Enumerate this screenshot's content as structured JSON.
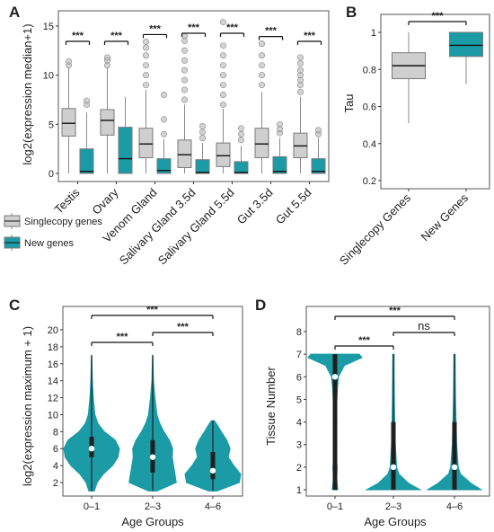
{
  "colors": {
    "single": "#cfcfcf",
    "new": "#1a9ba6",
    "frame": "#555555",
    "grid": "#000000"
  },
  "panels": {
    "A": "A",
    "B": "B",
    "C": "C",
    "D": "D"
  },
  "chart_data": [
    {
      "id": "A",
      "type": "box",
      "ylabel": "log2(expression median+1)",
      "ylim": [
        0,
        16
      ],
      "yticks": [
        0,
        5,
        10,
        15
      ],
      "categories": [
        "Testis",
        "Ovary",
        "Venom Gland",
        "Salivary Gland 3.5d",
        "Salivary Gland 5.5d",
        "Gut 3.5d",
        "Gut 5.5d"
      ],
      "significance": [
        "***",
        "***",
        "***",
        "***",
        "***",
        "***",
        "***"
      ],
      "legend": [
        {
          "name": "Singlecopy genes",
          "color": "#cfcfcf"
        },
        {
          "name": "New genes",
          "color": "#1a9ba6"
        }
      ],
      "series": [
        {
          "name": "Singlecopy genes",
          "boxes": [
            {
              "whisker_low": 0,
              "q1": 3.8,
              "median": 5.1,
              "q3": 6.6,
              "whisker_high": 10.8,
              "outliers": [
                11.0,
                11.4
              ]
            },
            {
              "whisker_low": 0,
              "q1": 3.9,
              "median": 5.4,
              "q3": 6.5,
              "whisker_high": 10.8,
              "outliers": [
                11.0,
                11.5,
                11.8
              ]
            },
            {
              "whisker_low": 0,
              "q1": 1.6,
              "median": 3.0,
              "q3": 4.6,
              "whisker_high": 8.5,
              "outliers": [
                9,
                10,
                11,
                12,
                12.8,
                13.4
              ]
            },
            {
              "whisker_low": 0,
              "q1": 0.6,
              "median": 1.9,
              "q3": 3.4,
              "whisker_high": 7.0,
              "outliers": [
                7.5,
                8.5,
                9.5,
                10.5,
                11.5,
                12.5,
                13.5,
                14.0
              ]
            },
            {
              "whisker_low": 0,
              "q1": 0.7,
              "median": 1.8,
              "q3": 3.1,
              "whisker_high": 6.6,
              "outliers": [
                7,
                8,
                9,
                10,
                11,
                12,
                13,
                15.4
              ]
            },
            {
              "whisker_low": 0,
              "q1": 1.6,
              "median": 3.0,
              "q3": 4.6,
              "whisker_high": 8.3,
              "outliers": [
                9,
                10,
                11,
                12,
                13.2
              ]
            },
            {
              "whisker_low": 0,
              "q1": 1.6,
              "median": 2.8,
              "q3": 4.1,
              "whisker_high": 7.8,
              "outliers": [
                8.3,
                9,
                9.5,
                10,
                10.5,
                11.2,
                11.8
              ]
            }
          ]
        },
        {
          "name": "New genes",
          "boxes": [
            {
              "whisker_low": 0,
              "q1": 0,
              "median": 0.2,
              "q3": 2.5,
              "whisker_high": 6.2,
              "outliers": [
                7.0,
                7.4
              ]
            },
            {
              "whisker_low": 0,
              "q1": 0,
              "median": 1.5,
              "q3": 4.7,
              "whisker_high": 7.8,
              "outliers": []
            },
            {
              "whisker_low": 0,
              "q1": 0,
              "median": 0.3,
              "q3": 1.5,
              "whisker_high": 3.5,
              "outliers": [
                4.0,
                5.5,
                8.0
              ]
            },
            {
              "whisker_low": 0,
              "q1": 0,
              "median": 0.1,
              "q3": 1.4,
              "whisker_high": 3.1,
              "outliers": [
                3.6,
                4.2,
                4.8
              ]
            },
            {
              "whisker_low": 0,
              "q1": 0,
              "median": 0.1,
              "q3": 1.2,
              "whisker_high": 2.8,
              "outliers": [
                3.4,
                4.0,
                4.6
              ]
            },
            {
              "whisker_low": 0,
              "q1": 0,
              "median": 0.2,
              "q3": 1.7,
              "whisker_high": 3.6,
              "outliers": [
                4.1,
                4.5,
                5.0
              ]
            },
            {
              "whisker_low": 0,
              "q1": 0,
              "median": 0.2,
              "q3": 1.5,
              "whisker_high": 3.6,
              "outliers": [
                4.0,
                4.4
              ]
            }
          ]
        }
      ]
    },
    {
      "id": "B",
      "type": "box",
      "ylabel": "Tau",
      "ylim": [
        0.2,
        1.05
      ],
      "yticks": [
        0.2,
        0.4,
        0.6,
        0.8,
        1.0
      ],
      "categories": [
        "Singlecopy Genes",
        "New Genes"
      ],
      "significance": "***",
      "boxes": [
        {
          "name": "Singlecopy Genes",
          "color": "#cfcfcf",
          "whisker_low": 0.51,
          "q1": 0.75,
          "median": 0.82,
          "q3": 0.89,
          "whisker_high": 1.0
        },
        {
          "name": "New Genes",
          "color": "#1a9ba6",
          "whisker_low": 0.72,
          "q1": 0.87,
          "median": 0.93,
          "q3": 1.0,
          "whisker_high": 1.0
        }
      ]
    },
    {
      "id": "C",
      "type": "violin",
      "xlabel": "Age Groups",
      "ylabel": "log2(expression maximum + 1)",
      "ylim": [
        1,
        21
      ],
      "yticks": [
        2,
        4,
        6,
        8,
        10,
        12,
        14,
        16,
        18,
        20
      ],
      "categories": [
        "0–1",
        "2–3",
        "4–6"
      ],
      "comparisons": [
        {
          "from": "0–1",
          "to": "2–3",
          "label": "***"
        },
        {
          "from": "2–3",
          "to": "4–6",
          "label": "***"
        },
        {
          "from": "0–1",
          "to": "4–6",
          "label": "***"
        }
      ],
      "groups": [
        {
          "min": 1,
          "max": 17,
          "q1": 5,
          "median": 6,
          "q3": 7.4,
          "density": [
            [
              1,
              0.1
            ],
            [
              2,
              0.2
            ],
            [
              3,
              0.42
            ],
            [
              4,
              0.75
            ],
            [
              5,
              0.95
            ],
            [
              6,
              1.0
            ],
            [
              7,
              0.85
            ],
            [
              8,
              0.45
            ],
            [
              9,
              0.22
            ],
            [
              10,
              0.12
            ],
            [
              12,
              0.06
            ],
            [
              14,
              0.03
            ],
            [
              17,
              0.005
            ]
          ]
        },
        {
          "min": 1,
          "max": 17,
          "q1": 3.2,
          "median": 5,
          "q3": 7,
          "density": [
            [
              1,
              0.15
            ],
            [
              2,
              0.85
            ],
            [
              3,
              0.8
            ],
            [
              4,
              0.75
            ],
            [
              5,
              0.7
            ],
            [
              6,
              0.72
            ],
            [
              7,
              0.6
            ],
            [
              8,
              0.4
            ],
            [
              9,
              0.25
            ],
            [
              10,
              0.15
            ],
            [
              12,
              0.08
            ],
            [
              14,
              0.03
            ],
            [
              17,
              0.005
            ]
          ]
        },
        {
          "min": 1,
          "max": 9.3,
          "q1": 2.4,
          "median": 3.4,
          "q3": 5.6,
          "density": [
            [
              1,
              0.15
            ],
            [
              2,
              0.95
            ],
            [
              3,
              1.0
            ],
            [
              4,
              0.75
            ],
            [
              5,
              0.55
            ],
            [
              6,
              0.62
            ],
            [
              7,
              0.5
            ],
            [
              8,
              0.3
            ],
            [
              9,
              0.12
            ],
            [
              9.3,
              0.05
            ]
          ]
        }
      ]
    },
    {
      "id": "D",
      "type": "violin",
      "xlabel": "Age Groups",
      "ylabel": "Tissue Number",
      "ylim": [
        0.8,
        8.4
      ],
      "yticks": [
        1,
        2,
        3,
        4,
        5,
        6,
        7,
        8
      ],
      "categories": [
        "0–1",
        "2–3",
        "4–6"
      ],
      "comparisons": [
        {
          "from": "0–1",
          "to": "2–3",
          "label": "***"
        },
        {
          "from": "2–3",
          "to": "4–6",
          "label": "ns"
        },
        {
          "from": "0–1",
          "to": "4–6",
          "label": "***"
        }
      ],
      "groups": [
        {
          "min": 1,
          "max": 7,
          "q1": 1,
          "median": 6,
          "q3": 7,
          "density": [
            [
              1,
              0.1
            ],
            [
              1.5,
              0.06
            ],
            [
              2,
              0.08
            ],
            [
              2.5,
              0.05
            ],
            [
              3,
              0.07
            ],
            [
              3.5,
              0.05
            ],
            [
              4,
              0.07
            ],
            [
              4.5,
              0.05
            ],
            [
              5,
              0.07
            ],
            [
              5.5,
              0.09
            ],
            [
              6,
              0.13
            ],
            [
              6.5,
              0.35
            ],
            [
              6.85,
              1.0
            ],
            [
              7,
              0.9
            ]
          ]
        },
        {
          "min": 1,
          "max": 7,
          "q1": 1,
          "median": 2,
          "q3": 4,
          "density": [
            [
              1,
              1.0
            ],
            [
              1.3,
              0.55
            ],
            [
              1.7,
              0.2
            ],
            [
              2,
              0.12
            ],
            [
              3,
              0.07
            ],
            [
              4,
              0.05
            ],
            [
              5,
              0.035
            ],
            [
              6,
              0.03
            ],
            [
              7,
              0.025
            ]
          ]
        },
        {
          "min": 1,
          "max": 7,
          "q1": 1,
          "median": 2,
          "q3": 4,
          "density": [
            [
              1,
              1.0
            ],
            [
              1.3,
              0.6
            ],
            [
              1.7,
              0.22
            ],
            [
              2,
              0.14
            ],
            [
              3,
              0.08
            ],
            [
              4,
              0.06
            ],
            [
              5,
              0.04
            ],
            [
              6,
              0.03
            ],
            [
              7,
              0.025
            ]
          ]
        }
      ]
    }
  ]
}
